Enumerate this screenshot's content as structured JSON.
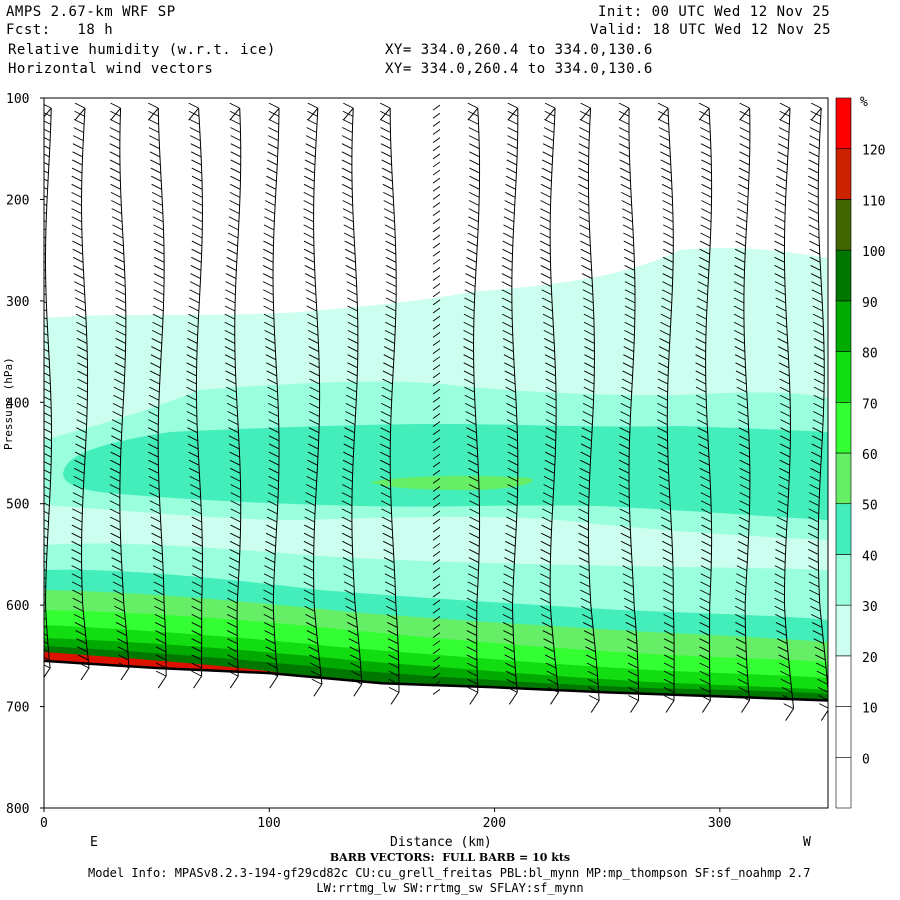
{
  "header": {
    "title": "AMPS 2.67-km WRF SP",
    "init": "Init: 00 UTC Wed 12 Nov 25",
    "fcst": "Fcst:   18 h",
    "valid": "Valid: 18 UTC Wed 12 Nov 25",
    "field1": "Relative humidity (w.r.t. ice)",
    "field2": "Horizontal wind vectors",
    "xy1": "XY= 334.0,260.4 to 334.0,130.6",
    "xy2": "XY= 334.0,260.4 to 334.0,130.6"
  },
  "chart_data": {
    "type": "cross-section",
    "xlabel": "Distance (km)",
    "ylabel": "Pressure (hPa)",
    "xlim": [
      0,
      348
    ],
    "ylim": [
      800,
      100
    ],
    "x_ticks": [
      0,
      100,
      200,
      300
    ],
    "y_ticks": [
      100,
      200,
      300,
      400,
      500,
      600,
      700,
      800
    ],
    "x_end_labels": {
      "left": "E",
      "right": "W"
    },
    "colorbar": {
      "unit": "%",
      "levels": [
        0,
        10,
        20,
        30,
        40,
        50,
        60,
        70,
        80,
        90,
        100,
        110,
        120
      ],
      "colors": [
        "#ffffff",
        "#ffffff",
        "#ffffff",
        "#ccfff0",
        "#99ffdd",
        "#44eebb",
        "#66ee66",
        "#33ff33",
        "#11dd11",
        "#00aa00",
        "#007700",
        "#446600",
        "#cc2200",
        "#ff0000"
      ]
    },
    "terrain_pressure": [
      {
        "x": 0,
        "p": 655
      },
      {
        "x": 50,
        "p": 662
      },
      {
        "x": 100,
        "p": 667
      },
      {
        "x": 150,
        "p": 677
      },
      {
        "x": 200,
        "p": 681
      },
      {
        "x": 250,
        "p": 686
      },
      {
        "x": 300,
        "p": 690
      },
      {
        "x": 348,
        "p": 694
      }
    ],
    "wind_barb_x_km": [
      2,
      18,
      35,
      52,
      69,
      86,
      103,
      121,
      138,
      155,
      174,
      192,
      209,
      226,
      243,
      261,
      278,
      295,
      312,
      330,
      345
    ],
    "footnote": "BARB VECTORS:  FULL BARB = 10 kts",
    "model_info": "Model Info: MPASv8.2.3-194-gf29cd82c CU:cu_grell_freitas PBL:bl_mynn MP:mp_thompson SF:sf_noahmp 2.7",
    "model_info2": "LW:rrtmg_lw SW:rrtmg_sw SFLAY:sf_mynn"
  }
}
